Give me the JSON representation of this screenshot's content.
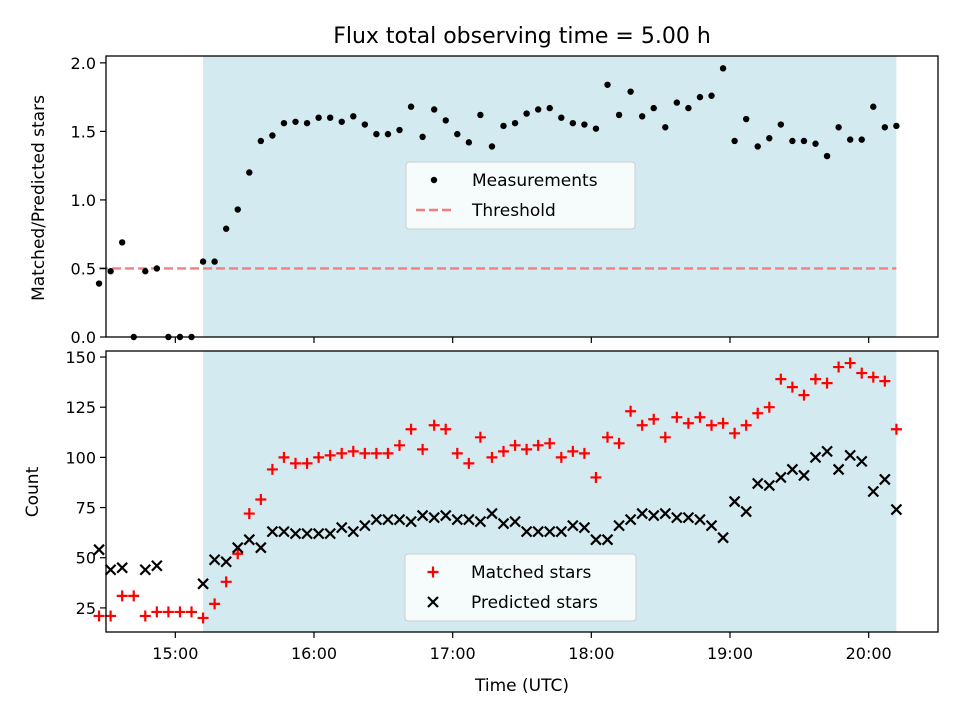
{
  "chart_data": [
    {
      "type": "scatter",
      "title": "Flux total observing time = 5.00 h",
      "xlabel": "",
      "ylabel": "Matched/Predicted stars",
      "xlim": [
        "14:30",
        "20:30"
      ],
      "ylim": [
        0,
        2.05
      ],
      "yticks": [
        "0.0",
        "0.5",
        "1.0",
        "1.5",
        "2.0"
      ],
      "shaded_region": {
        "start": "15:12",
        "end": "20:12",
        "color": "#d3ebf0"
      },
      "threshold": {
        "name": "Threshold",
        "value": 0.5,
        "start": "14:27",
        "end": "20:12",
        "color": "#f08080",
        "style": "dashed"
      },
      "legend": {
        "position": "center"
      },
      "series": [
        {
          "name": "Measurements",
          "color": "#000000",
          "marker": "dot",
          "points": [
            [
              "14:27",
              0.39
            ],
            [
              "14:32",
              0.48
            ],
            [
              "14:37",
              0.69
            ],
            [
              "14:42",
              0.0
            ],
            [
              "14:47",
              0.48
            ],
            [
              "14:52",
              0.5
            ],
            [
              "14:57",
              0.0
            ],
            [
              "15:02",
              0.0
            ],
            [
              "15:07",
              0.0
            ],
            [
              "15:12",
              0.55
            ],
            [
              "15:17",
              0.55
            ],
            [
              "15:22",
              0.79
            ],
            [
              "15:27",
              0.93
            ],
            [
              "15:32",
              1.2
            ],
            [
              "15:37",
              1.43
            ],
            [
              "15:42",
              1.47
            ],
            [
              "15:47",
              1.56
            ],
            [
              "15:52",
              1.57
            ],
            [
              "15:57",
              1.56
            ],
            [
              "16:02",
              1.6
            ],
            [
              "16:07",
              1.6
            ],
            [
              "16:12",
              1.57
            ],
            [
              "16:17",
              1.61
            ],
            [
              "16:22",
              1.55
            ],
            [
              "16:27",
              1.48
            ],
            [
              "16:32",
              1.48
            ],
            [
              "16:37",
              1.51
            ],
            [
              "16:42",
              1.68
            ],
            [
              "16:47",
              1.46
            ],
            [
              "16:52",
              1.66
            ],
            [
              "16:57",
              1.58
            ],
            [
              "17:02",
              1.48
            ],
            [
              "17:07",
              1.42
            ],
            [
              "17:12",
              1.62
            ],
            [
              "17:17",
              1.39
            ],
            [
              "17:22",
              1.54
            ],
            [
              "17:27",
              1.56
            ],
            [
              "17:32",
              1.63
            ],
            [
              "17:37",
              1.66
            ],
            [
              "17:42",
              1.67
            ],
            [
              "17:47",
              1.6
            ],
            [
              "17:52",
              1.56
            ],
            [
              "17:57",
              1.55
            ],
            [
              "18:02",
              1.52
            ],
            [
              "18:07",
              1.84
            ],
            [
              "18:12",
              1.62
            ],
            [
              "18:17",
              1.79
            ],
            [
              "18:22",
              1.61
            ],
            [
              "18:27",
              1.67
            ],
            [
              "18:32",
              1.53
            ],
            [
              "18:37",
              1.71
            ],
            [
              "18:42",
              1.67
            ],
            [
              "18:47",
              1.75
            ],
            [
              "18:52",
              1.76
            ],
            [
              "18:57",
              1.96
            ],
            [
              "19:02",
              1.43
            ],
            [
              "19:07",
              1.59
            ],
            [
              "19:12",
              1.39
            ],
            [
              "19:17",
              1.45
            ],
            [
              "19:22",
              1.55
            ],
            [
              "19:27",
              1.43
            ],
            [
              "19:32",
              1.43
            ],
            [
              "19:37",
              1.41
            ],
            [
              "19:42",
              1.32
            ],
            [
              "19:47",
              1.53
            ],
            [
              "19:52",
              1.44
            ],
            [
              "19:57",
              1.44
            ],
            [
              "20:02",
              1.68
            ],
            [
              "20:07",
              1.53
            ],
            [
              "20:12",
              1.54
            ]
          ]
        }
      ]
    },
    {
      "type": "scatter",
      "title": "",
      "xlabel": "Time (UTC)",
      "ylabel": "Count",
      "xlim": [
        "14:30",
        "20:30"
      ],
      "ylim": [
        13,
        153
      ],
      "yticks": [
        "25",
        "50",
        "75",
        "100",
        "125",
        "150"
      ],
      "xticks": [
        "15:00",
        "16:00",
        "17:00",
        "18:00",
        "19:00",
        "20:00"
      ],
      "shaded_region": {
        "start": "15:12",
        "end": "20:12",
        "color": "#d3ebf0"
      },
      "legend": {
        "position": "lower center"
      },
      "series": [
        {
          "name": "Matched stars",
          "color": "#ff0000",
          "marker": "plus",
          "points": [
            [
              "14:27",
              21
            ],
            [
              "14:32",
              21
            ],
            [
              "14:37",
              31
            ],
            [
              "14:42",
              31
            ],
            [
              "14:47",
              21
            ],
            [
              "14:52",
              23
            ],
            [
              "14:57",
              23
            ],
            [
              "15:02",
              23
            ],
            [
              "15:07",
              23
            ],
            [
              "15:12",
              20
            ],
            [
              "15:17",
              27
            ],
            [
              "15:22",
              38
            ],
            [
              "15:27",
              52
            ],
            [
              "15:32",
              72
            ],
            [
              "15:37",
              79
            ],
            [
              "15:42",
              94
            ],
            [
              "15:47",
              100
            ],
            [
              "15:52",
              97
            ],
            [
              "15:57",
              97
            ],
            [
              "16:02",
              100
            ],
            [
              "16:07",
              101
            ],
            [
              "16:12",
              102
            ],
            [
              "16:17",
              103
            ],
            [
              "16:22",
              102
            ],
            [
              "16:27",
              102
            ],
            [
              "16:32",
              102
            ],
            [
              "16:37",
              106
            ],
            [
              "16:42",
              114
            ],
            [
              "16:47",
              104
            ],
            [
              "16:52",
              116
            ],
            [
              "16:57",
              114
            ],
            [
              "17:02",
              102
            ],
            [
              "17:07",
              97
            ],
            [
              "17:12",
              110
            ],
            [
              "17:17",
              100
            ],
            [
              "17:22",
              103
            ],
            [
              "17:27",
              106
            ],
            [
              "17:32",
              104
            ],
            [
              "17:37",
              106
            ],
            [
              "17:42",
              107
            ],
            [
              "17:47",
              100
            ],
            [
              "17:52",
              103
            ],
            [
              "17:57",
              102
            ],
            [
              "18:02",
              90
            ],
            [
              "18:07",
              110
            ],
            [
              "18:12",
              107
            ],
            [
              "18:17",
              123
            ],
            [
              "18:22",
              116
            ],
            [
              "18:27",
              119
            ],
            [
              "18:32",
              110
            ],
            [
              "18:37",
              120
            ],
            [
              "18:42",
              117
            ],
            [
              "18:47",
              120
            ],
            [
              "18:52",
              116
            ],
            [
              "18:57",
              117
            ],
            [
              "19:02",
              112
            ],
            [
              "19:07",
              116
            ],
            [
              "19:12",
              122
            ],
            [
              "19:17",
              125
            ],
            [
              "19:22",
              139
            ],
            [
              "19:27",
              135
            ],
            [
              "19:32",
              131
            ],
            [
              "19:37",
              139
            ],
            [
              "19:42",
              137
            ],
            [
              "19:47",
              145
            ],
            [
              "19:52",
              147
            ],
            [
              "19:57",
              142
            ],
            [
              "20:02",
              140
            ],
            [
              "20:07",
              138
            ],
            [
              "20:12",
              114
            ]
          ]
        },
        {
          "name": "Predicted stars",
          "color": "#000000",
          "marker": "x",
          "points": [
            [
              "14:27",
              54
            ],
            [
              "14:32",
              44
            ],
            [
              "14:37",
              45
            ],
            [
              "14:47",
              44
            ],
            [
              "14:52",
              46
            ],
            [
              "15:12",
              37
            ],
            [
              "15:17",
              49
            ],
            [
              "15:22",
              48
            ],
            [
              "15:27",
              55
            ],
            [
              "15:32",
              59
            ],
            [
              "15:37",
              55
            ],
            [
              "15:42",
              63
            ],
            [
              "15:47",
              63
            ],
            [
              "15:52",
              62
            ],
            [
              "15:57",
              62
            ],
            [
              "16:02",
              62
            ],
            [
              "16:07",
              62
            ],
            [
              "16:12",
              65
            ],
            [
              "16:17",
              63
            ],
            [
              "16:22",
              66
            ],
            [
              "16:27",
              69
            ],
            [
              "16:32",
              69
            ],
            [
              "16:37",
              69
            ],
            [
              "16:42",
              68
            ],
            [
              "16:47",
              71
            ],
            [
              "16:52",
              70
            ],
            [
              "16:57",
              71
            ],
            [
              "17:02",
              69
            ],
            [
              "17:07",
              69
            ],
            [
              "17:12",
              68
            ],
            [
              "17:17",
              72
            ],
            [
              "17:22",
              67
            ],
            [
              "17:27",
              68
            ],
            [
              "17:32",
              63
            ],
            [
              "17:37",
              63
            ],
            [
              "17:42",
              63
            ],
            [
              "17:47",
              63
            ],
            [
              "17:52",
              66
            ],
            [
              "17:57",
              65
            ],
            [
              "18:02",
              59
            ],
            [
              "18:07",
              59
            ],
            [
              "18:12",
              66
            ],
            [
              "18:17",
              69
            ],
            [
              "18:22",
              72
            ],
            [
              "18:27",
              71
            ],
            [
              "18:32",
              72
            ],
            [
              "18:37",
              70
            ],
            [
              "18:42",
              70
            ],
            [
              "18:47",
              69
            ],
            [
              "18:52",
              66
            ],
            [
              "18:57",
              60
            ],
            [
              "19:02",
              78
            ],
            [
              "19:07",
              73
            ],
            [
              "19:12",
              87
            ],
            [
              "19:17",
              86
            ],
            [
              "19:22",
              90
            ],
            [
              "19:27",
              94
            ],
            [
              "19:32",
              91
            ],
            [
              "19:37",
              100
            ],
            [
              "19:42",
              103
            ],
            [
              "19:47",
              94
            ],
            [
              "19:52",
              101
            ],
            [
              "19:57",
              98
            ],
            [
              "20:02",
              83
            ],
            [
              "20:07",
              89
            ],
            [
              "20:12",
              74
            ]
          ]
        }
      ]
    }
  ]
}
